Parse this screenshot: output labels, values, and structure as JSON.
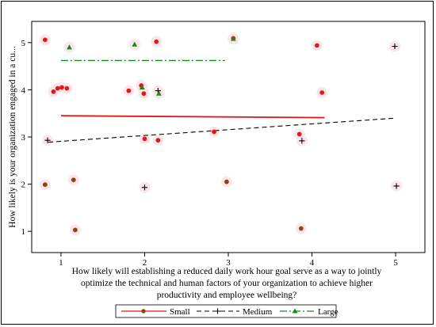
{
  "chart_data": {
    "type": "scatter",
    "xlabel_lines": [
      "How likely will establishing a reduced daily work hour goal serve as a way to jointly",
      "optimize the technical and human factors of your organization to achieve higher",
      "productivity and employee wellbeing?"
    ],
    "ylabel": "How likely is your organization engaged in a cu...",
    "xlim": [
      0.65,
      5.35
    ],
    "ylim": [
      0.55,
      5.45
    ],
    "x_ticks": [
      1,
      2,
      3,
      4,
      5
    ],
    "y_ticks": [
      1,
      2,
      3,
      4,
      5
    ],
    "x_tick_labels": [
      "1",
      "2",
      "3",
      "4",
      "5"
    ],
    "y_tick_labels": [
      "1",
      "2",
      "3",
      "4",
      "5"
    ],
    "grid": false,
    "legend_position": "bottom",
    "series": [
      {
        "name": "Small",
        "color": "#e0191b",
        "marker": "circle",
        "line_style": "solid",
        "points": [
          {
            "x": 0.81,
            "y": 5.06,
            "color": "#e0191b"
          },
          {
            "x": 0.91,
            "y": 3.96,
            "color": "#e0191b"
          },
          {
            "x": 0.96,
            "y": 4.03,
            "color": "#e0191b"
          },
          {
            "x": 1.01,
            "y": 4.05,
            "color": "#e0191b"
          },
          {
            "x": 1.07,
            "y": 4.03,
            "color": "#e0191b"
          },
          {
            "x": 1.81,
            "y": 3.98,
            "color": "#e0191b"
          },
          {
            "x": 1.96,
            "y": 4.09,
            "color": "#e0191b"
          },
          {
            "x": 1.99,
            "y": 3.92,
            "color": "#e0191b"
          },
          {
            "x": 2.14,
            "y": 5.02,
            "color": "#e0191b"
          },
          {
            "x": 2.0,
            "y": 2.96,
            "color": "#e0191b"
          },
          {
            "x": 2.16,
            "y": 2.93,
            "color": "#e0191b"
          },
          {
            "x": 2.83,
            "y": 3.11,
            "color": "#e0191b"
          },
          {
            "x": 3.06,
            "y": 5.09,
            "color": "#e0191b"
          },
          {
            "x": 3.85,
            "y": 3.06,
            "color": "#e0191b"
          },
          {
            "x": 4.06,
            "y": 4.94,
            "color": "#e0191b"
          },
          {
            "x": 4.12,
            "y": 3.94,
            "color": "#e0191b"
          },
          {
            "x": 0.81,
            "y": 1.99,
            "color": "#8b4513"
          },
          {
            "x": 1.15,
            "y": 2.09,
            "color": "#8b4513"
          },
          {
            "x": 1.17,
            "y": 1.03,
            "color": "#8b4513"
          },
          {
            "x": 2.98,
            "y": 2.05,
            "color": "#8b4513"
          },
          {
            "x": 3.87,
            "y": 1.06,
            "color": "#8b4513"
          }
        ],
        "fit_line": {
          "x": [
            1,
            4.15
          ],
          "y": [
            3.45,
            3.41
          ]
        }
      },
      {
        "name": "Medium",
        "color": "#000000",
        "marker": "plus",
        "line_style": "dashed",
        "points": [
          {
            "x": 0.84,
            "y": 2.93
          },
          {
            "x": 2.16,
            "y": 3.98
          },
          {
            "x": 2.0,
            "y": 1.93
          },
          {
            "x": 3.88,
            "y": 2.92
          },
          {
            "x": 4.99,
            "y": 4.92
          },
          {
            "x": 5.01,
            "y": 1.96
          }
        ],
        "fit_line": {
          "x": [
            0.85,
            5.0
          ],
          "y": [
            2.89,
            3.4
          ]
        }
      },
      {
        "name": "Large",
        "color": "#1a8a1a",
        "marker": "triangle",
        "line_style": "dashdot",
        "points": [
          {
            "x": 1.1,
            "y": 4.9
          },
          {
            "x": 1.88,
            "y": 4.96
          },
          {
            "x": 1.97,
            "y": 4.05
          },
          {
            "x": 2.17,
            "y": 3.92
          },
          {
            "x": 3.06,
            "y": 5.08
          }
        ],
        "fit_line": {
          "x": [
            1.0,
            2.96
          ],
          "y": [
            4.62,
            4.62
          ]
        }
      }
    ]
  }
}
